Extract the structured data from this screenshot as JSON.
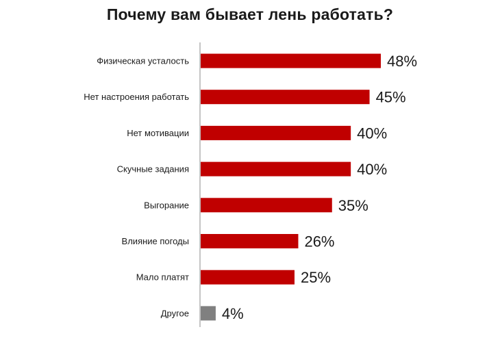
{
  "chart_data": {
    "type": "bar",
    "orientation": "horizontal",
    "title": "Почему вам бывает лень работать?",
    "xlabel": "",
    "ylabel": "",
    "categories": [
      "Физическая усталость",
      "Нет настроения работать",
      "Нет мотивации",
      "Скучные задания",
      "Выгорание",
      "Влияние погоды",
      "Мало платят",
      "Другое"
    ],
    "values": [
      48,
      45,
      40,
      40,
      35,
      26,
      25,
      4
    ],
    "value_labels": [
      "48%",
      "45%",
      "40%",
      "40%",
      "35%",
      "26%",
      "25%",
      "4%"
    ],
    "xlim": [
      0,
      50
    ],
    "grid": false,
    "legend": "none",
    "colors": {
      "bar": "#c00000",
      "bar_other": "#808080",
      "axis": "#9e9e9e"
    }
  }
}
